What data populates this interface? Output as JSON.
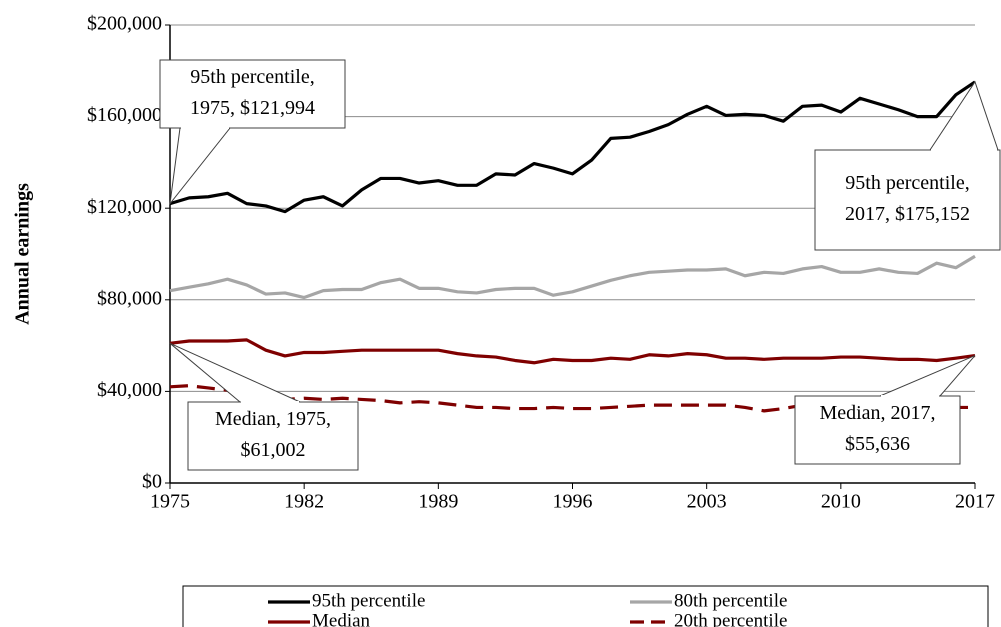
{
  "chart_data": {
    "type": "line",
    "y_label": "Annual earnings",
    "x": [
      1975,
      1976,
      1977,
      1978,
      1979,
      1980,
      1981,
      1982,
      1983,
      1984,
      1985,
      1986,
      1987,
      1988,
      1989,
      1990,
      1991,
      1992,
      1993,
      1994,
      1995,
      1996,
      1997,
      1998,
      1999,
      2000,
      2001,
      2002,
      2003,
      2004,
      2005,
      2006,
      2007,
      2008,
      2009,
      2010,
      2011,
      2012,
      2013,
      2014,
      2015,
      2016,
      2017
    ],
    "xlim": [
      1975,
      2017
    ],
    "xticks": [
      1975,
      1982,
      1989,
      1996,
      2003,
      2010,
      2017
    ],
    "ylim": [
      0,
      200000
    ],
    "yticks": [
      {
        "value": 0,
        "label": "$0"
      },
      {
        "value": 40000,
        "label": "$40,000"
      },
      {
        "value": 80000,
        "label": "$80,000"
      },
      {
        "value": 120000,
        "label": "$120,000"
      },
      {
        "value": 160000,
        "label": "$160,000"
      },
      {
        "value": 200000,
        "label": "$200,000"
      }
    ],
    "grid": true,
    "series": [
      {
        "name": "95th percentile",
        "color": "#000000",
        "dash": "solid",
        "values": [
          121994,
          124500,
          125000,
          126500,
          122000,
          121000,
          118500,
          123500,
          125000,
          121000,
          128000,
          133000,
          133000,
          131000,
          132000,
          130000,
          130000,
          135000,
          134500,
          139500,
          137500,
          135000,
          141000,
          150500,
          151000,
          153500,
          156500,
          161000,
          164500,
          160500,
          161000,
          160500,
          158000,
          164500,
          165000,
          162000,
          168000,
          165500,
          163000,
          160000,
          160000,
          169500,
          175152
        ]
      },
      {
        "name": "80th percentile",
        "color": "#a6a6a6",
        "dash": "solid",
        "values": [
          84000,
          85500,
          87000,
          89000,
          86500,
          82500,
          83000,
          81000,
          84000,
          84500,
          84500,
          87500,
          89000,
          85000,
          85000,
          83500,
          83000,
          84500,
          85000,
          85000,
          82000,
          83500,
          86000,
          88500,
          90500,
          92000,
          92500,
          93000,
          93000,
          93500,
          90500,
          92000,
          91500,
          93500,
          94500,
          92000,
          92000,
          93500,
          92000,
          91500,
          96000,
          94000,
          99000
        ]
      },
      {
        "name": "Median",
        "color": "#7f0000",
        "dash": "solid",
        "values": [
          61002,
          62000,
          62000,
          62000,
          62500,
          58000,
          55500,
          57000,
          57000,
          57500,
          58000,
          58000,
          58000,
          58000,
          58000,
          56500,
          55500,
          55000,
          53500,
          52500,
          54000,
          53500,
          53500,
          54500,
          54000,
          56000,
          55500,
          56500,
          56000,
          54500,
          54500,
          54000,
          54500,
          54500,
          54500,
          55000,
          55000,
          54500,
          54000,
          54000,
          53500,
          54500,
          55636
        ]
      },
      {
        "name": "20th percentile",
        "color": "#7f0000",
        "dash": "dashed",
        "values": [
          42000,
          42500,
          41500,
          40500,
          39000,
          37000,
          36500,
          37000,
          36500,
          37000,
          36500,
          36000,
          35000,
          35500,
          35000,
          34000,
          33000,
          33000,
          32500,
          32500,
          33000,
          32500,
          32500,
          33000,
          33500,
          34000,
          34000,
          34000,
          34000,
          34000,
          33000,
          31500,
          32500,
          34000,
          34000,
          33500,
          33500,
          33000,
          33000,
          33000,
          33000,
          33000,
          33000
        ]
      }
    ],
    "annotations": [
      {
        "lines": [
          "95th percentile,",
          "1975, $121,994"
        ]
      },
      {
        "lines": [
          "95th percentile,",
          "2017, $175,152"
        ]
      },
      {
        "lines": [
          "Median, 1975,",
          "$61,002"
        ]
      },
      {
        "lines": [
          "Median, 2017,",
          "$55,636"
        ]
      }
    ]
  }
}
